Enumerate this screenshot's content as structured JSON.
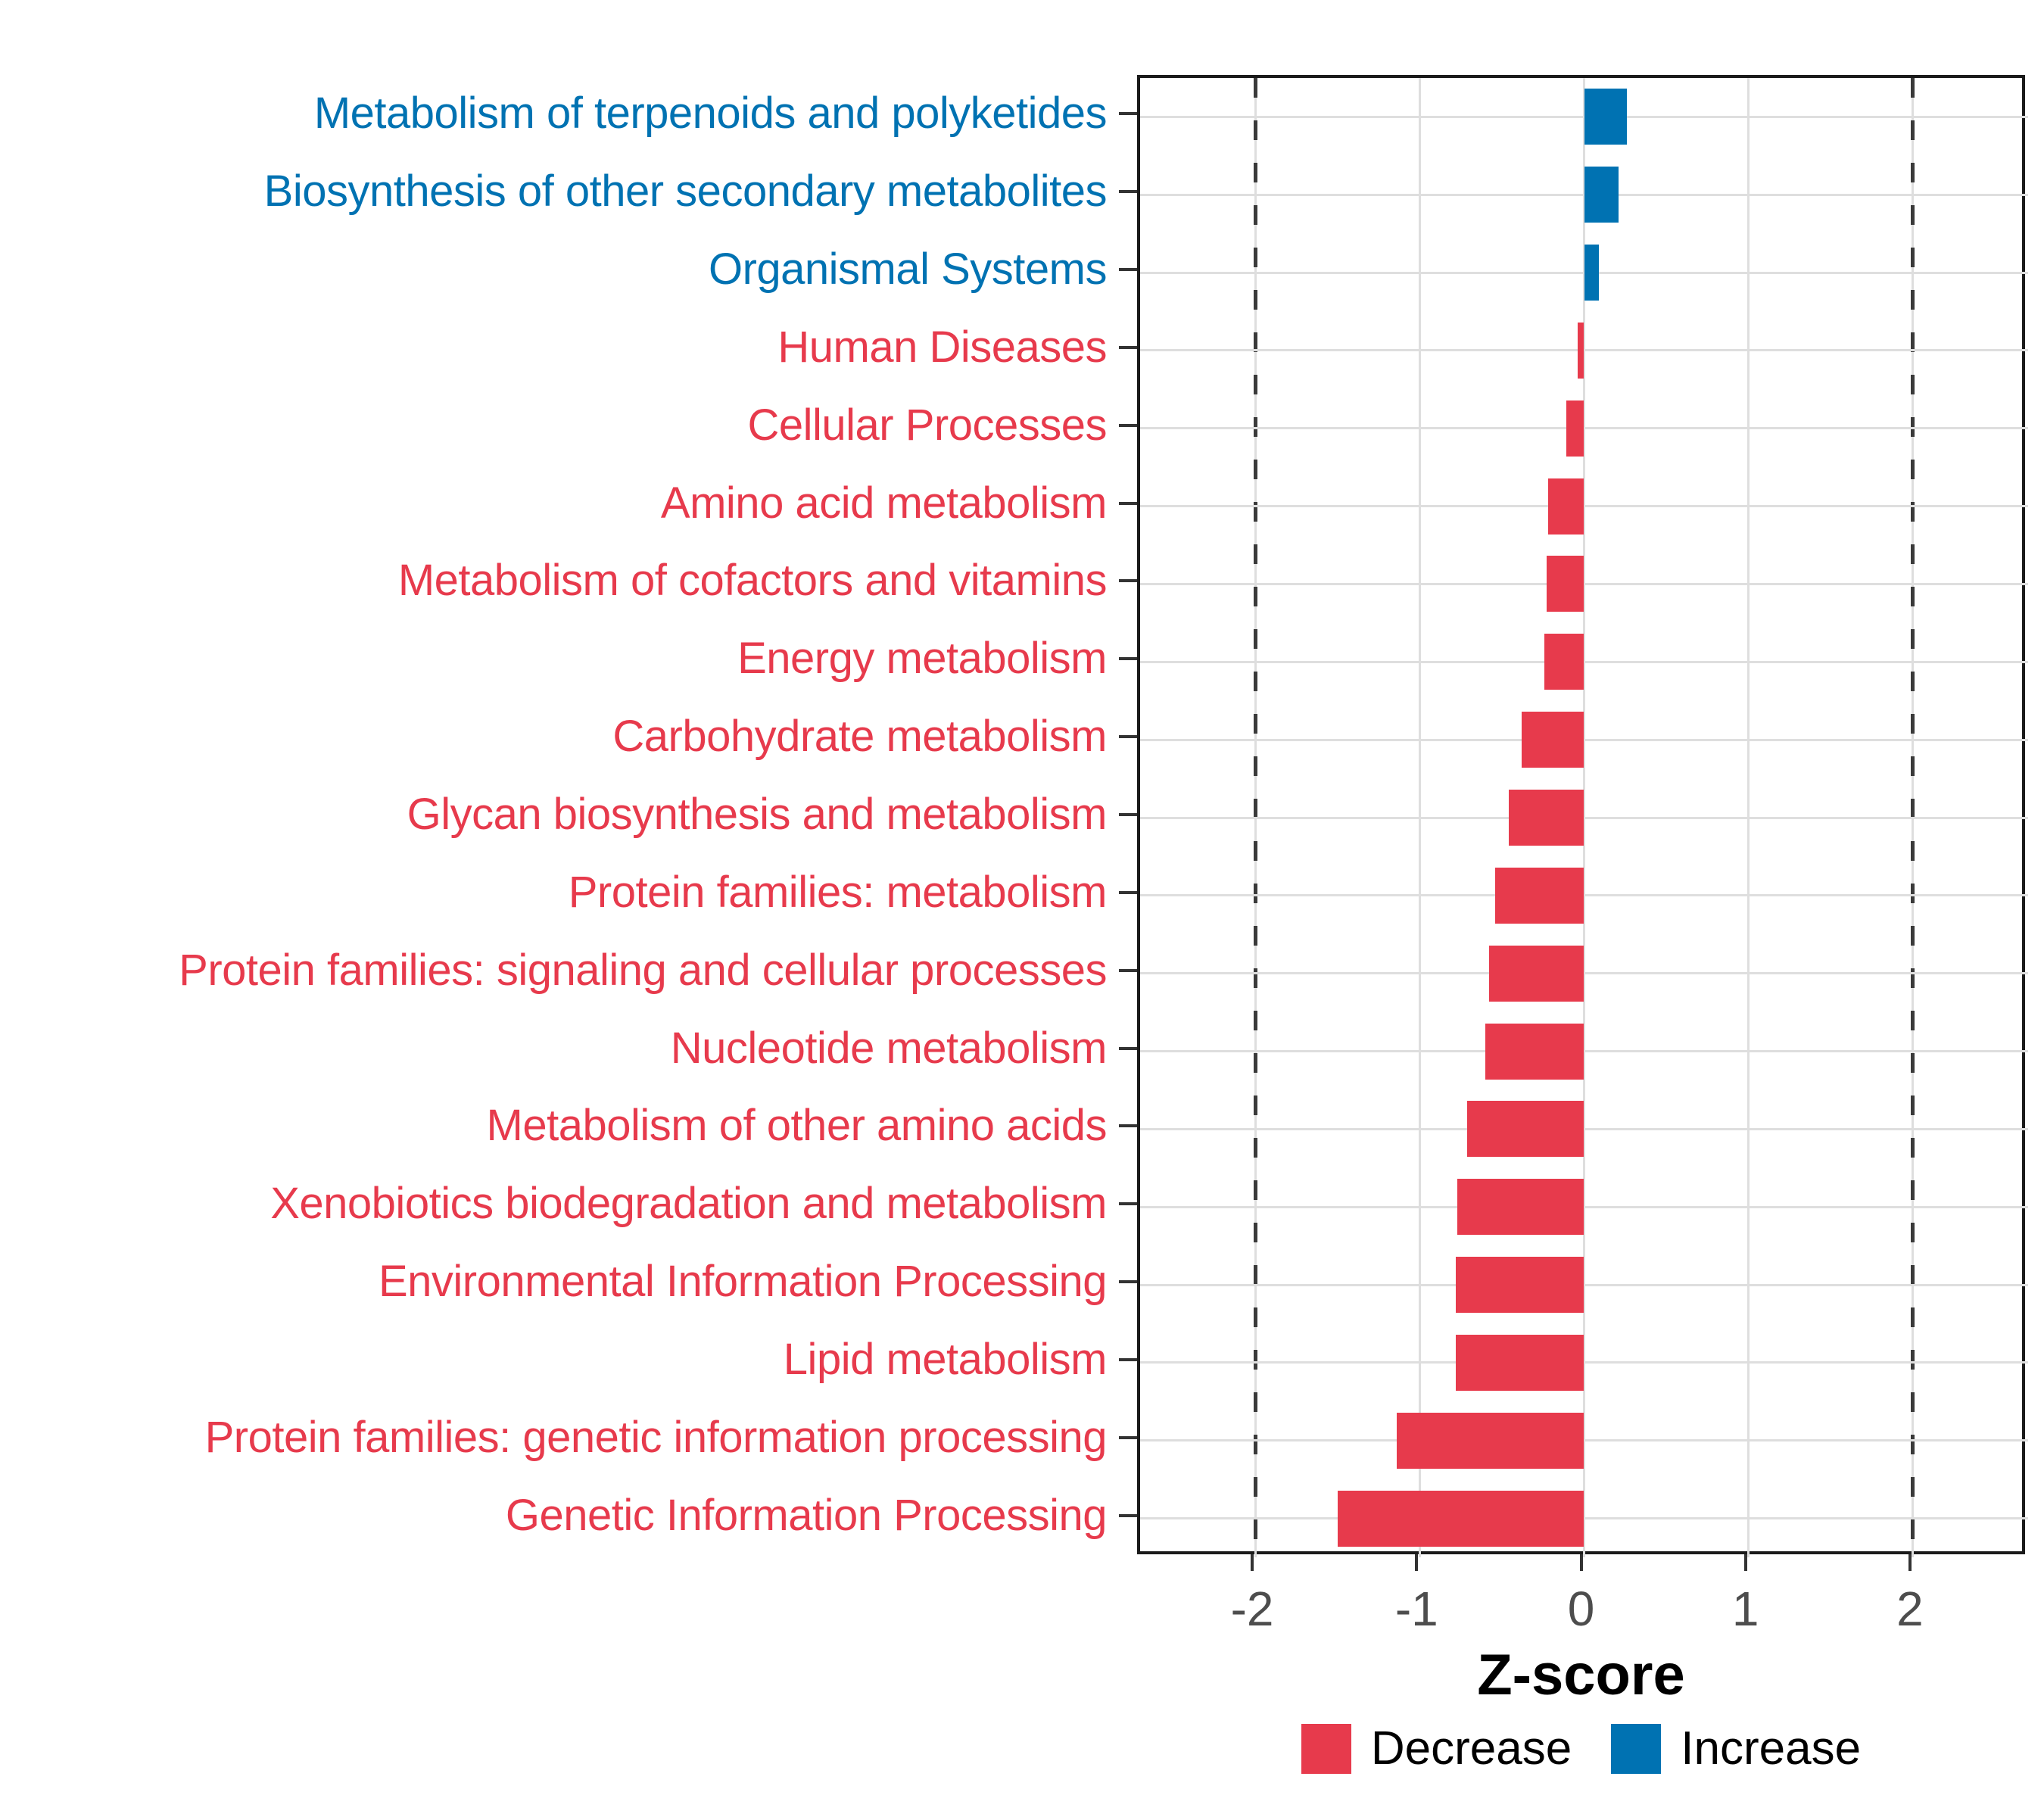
{
  "chart_data": {
    "type": "bar",
    "orientation": "horizontal",
    "xlabel": "Z-score",
    "xlim": [
      -2.7,
      2.7
    ],
    "x_ticks": [
      -2,
      -1,
      0,
      1,
      2
    ],
    "reference_lines_x": [
      -2,
      2
    ],
    "grid": true,
    "legend_position": "bottom",
    "bars": [
      {
        "label": "Metabolism of terpenoids and polyketides",
        "value": 0.26,
        "direction": "increase"
      },
      {
        "label": "Biosynthesis of other secondary metabolites",
        "value": 0.21,
        "direction": "increase"
      },
      {
        "label": "Organismal Systems",
        "value": 0.09,
        "direction": "increase"
      },
      {
        "label": "Human Diseases",
        "value": -0.04,
        "direction": "decrease"
      },
      {
        "label": "Cellular Processes",
        "value": -0.11,
        "direction": "decrease"
      },
      {
        "label": "Amino acid metabolism",
        "value": -0.22,
        "direction": "decrease"
      },
      {
        "label": "Metabolism of cofactors and vitamins",
        "value": -0.23,
        "direction": "decrease"
      },
      {
        "label": "Energy metabolism",
        "value": -0.24,
        "direction": "decrease"
      },
      {
        "label": "Carbohydrate metabolism",
        "value": -0.38,
        "direction": "decrease"
      },
      {
        "label": "Glycan biosynthesis and metabolism",
        "value": -0.46,
        "direction": "decrease"
      },
      {
        "label": "Protein families: metabolism",
        "value": -0.54,
        "direction": "decrease"
      },
      {
        "label": "Protein families: signaling and cellular processes",
        "value": -0.58,
        "direction": "decrease"
      },
      {
        "label": "Nucleotide metabolism",
        "value": -0.6,
        "direction": "decrease"
      },
      {
        "label": "Metabolism of other amino acids",
        "value": -0.71,
        "direction": "decrease"
      },
      {
        "label": "Xenobiotics biodegradation and metabolism",
        "value": -0.77,
        "direction": "decrease"
      },
      {
        "label": "Environmental Information Processing",
        "value": -0.78,
        "direction": "decrease"
      },
      {
        "label": "Lipid metabolism",
        "value": -0.78,
        "direction": "decrease"
      },
      {
        "label": "Protein families: genetic information processing",
        "value": -1.14,
        "direction": "decrease"
      },
      {
        "label": "Genetic Information Processing",
        "value": -1.5,
        "direction": "decrease"
      }
    ]
  },
  "axis": {
    "x_title": "Z-score",
    "x_tick_labels": [
      "-2",
      "-1",
      "0",
      "1",
      "2"
    ]
  },
  "legend": {
    "decrease_label": "Decrease",
    "increase_label": "Increase"
  },
  "colors": {
    "decrease": "#E73A4C",
    "increase": "#0072B2",
    "grid": "#DEDEDE",
    "axis_text": "#4D4D4D",
    "dashed_line": "#3A3A3A",
    "panel_border": "#1A1A1A"
  }
}
